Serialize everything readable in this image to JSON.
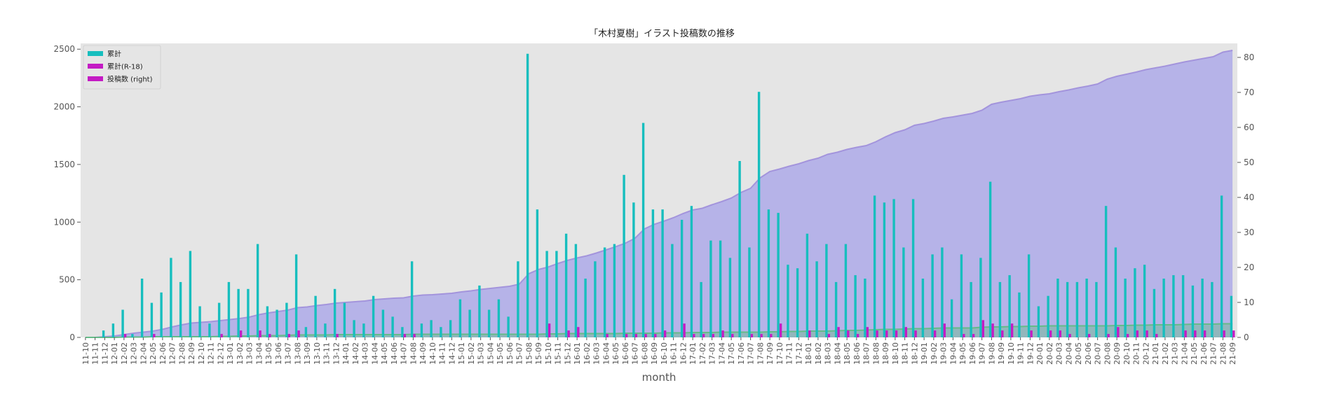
{
  "chart_data": {
    "type": "bar",
    "title": "「木村夏樹」イラスト投稿数の推移",
    "xlabel": "month",
    "ylabel": "",
    "ylim": [
      0,
      2550
    ],
    "y2lim": [
      0,
      84
    ],
    "yticks": [
      0,
      500,
      1000,
      1500,
      2000,
      2500
    ],
    "y2ticks": [
      0,
      10,
      20,
      30,
      40,
      50,
      60,
      70,
      80
    ],
    "grid": false,
    "legend_position": "top-left",
    "colors": {
      "total_bar": "#17bebe",
      "r18_bar": "#c41bc4",
      "posts_line": "#a394dc",
      "posts_area": "#b3b0e8",
      "r18_line": "#66bb88",
      "plot_bg": "#e5e5e5"
    },
    "categories": [
      "11-10",
      "11-11",
      "11-12",
      "12-01",
      "12-02",
      "12-03",
      "12-04",
      "12-05",
      "12-06",
      "12-07",
      "12-08",
      "12-09",
      "12-10",
      "12-11",
      "12-12",
      "13-01",
      "13-02",
      "13-03",
      "13-04",
      "13-05",
      "13-06",
      "13-07",
      "13-08",
      "13-09",
      "13-10",
      "13-11",
      "13-12",
      "14-01",
      "14-02",
      "14-03",
      "14-04",
      "14-05",
      "14-06",
      "14-07",
      "14-08",
      "14-09",
      "14-10",
      "14-11",
      "14-12",
      "15-01",
      "15-02",
      "15-03",
      "15-04",
      "15-05",
      "15-06",
      "15-07",
      "15-08",
      "15-09",
      "15-10",
      "15-11",
      "15-12",
      "16-01",
      "16-02",
      "16-03",
      "16-04",
      "16-05",
      "16-06",
      "16-07",
      "16-08",
      "16-09",
      "16-10",
      "16-11",
      "16-12",
      "17-01",
      "17-02",
      "17-03",
      "17-04",
      "17-05",
      "17-06",
      "17-07",
      "17-08",
      "17-09",
      "17-10",
      "17-11",
      "17-12",
      "18-01",
      "18-02",
      "18-03",
      "18-04",
      "18-05",
      "18-06",
      "18-07",
      "18-08",
      "18-09",
      "18-10",
      "18-11",
      "18-12",
      "19-01",
      "19-02",
      "19-03",
      "19-04",
      "19-05",
      "19-06",
      "19-07",
      "19-08",
      "19-09",
      "19-10",
      "19-11",
      "19-12",
      "20-01",
      "20-02",
      "20-03",
      "20-04",
      "20-05",
      "20-06",
      "20-07",
      "20-08",
      "20-09",
      "20-10",
      "20-11",
      "20-12",
      "21-01",
      "21-02",
      "21-03",
      "21-04",
      "21-05",
      "21-06",
      "21-07",
      "21-08",
      "21-09"
    ],
    "series": [
      {
        "name": "累計",
        "axis": "left",
        "kind": "bar",
        "values": [
          0,
          0,
          60,
          120,
          240,
          30,
          510,
          300,
          390,
          690,
          480,
          750,
          270,
          120,
          300,
          480,
          420,
          420,
          810,
          270,
          240,
          300,
          720,
          90,
          360,
          120,
          420,
          300,
          150,
          120,
          360,
          240,
          180,
          90,
          660,
          120,
          150,
          90,
          150,
          330,
          240,
          450,
          240,
          330,
          180,
          660,
          2460,
          1110,
          750,
          750,
          900,
          810,
          510,
          660,
          780,
          810,
          1410,
          1170,
          1860,
          1110,
          1110,
          810,
          1020,
          1140,
          480,
          840,
          840,
          690,
          1530,
          780,
          2130,
          1110,
          1080,
          630,
          600,
          900,
          660,
          810,
          480,
          810,
          540,
          510,
          1230,
          1170,
          1200,
          780,
          1200,
          510,
          720,
          780,
          330,
          720,
          480,
          690,
          1350,
          480,
          540,
          390,
          720,
          270,
          360,
          510,
          480,
          480,
          510,
          480,
          1140,
          780,
          510,
          600,
          630,
          420,
          510,
          540,
          540,
          450,
          510,
          480,
          1230,
          360
        ]
      },
      {
        "name": "累計(R-18)",
        "axis": "left",
        "kind": "bar",
        "values": [
          0,
          0,
          0,
          0,
          30,
          0,
          0,
          30,
          0,
          0,
          0,
          0,
          0,
          0,
          30,
          0,
          60,
          0,
          60,
          30,
          0,
          30,
          60,
          0,
          0,
          0,
          30,
          0,
          0,
          0,
          0,
          0,
          0,
          30,
          30,
          0,
          0,
          0,
          0,
          0,
          0,
          0,
          0,
          0,
          0,
          0,
          0,
          0,
          120,
          0,
          60,
          90,
          0,
          0,
          30,
          0,
          30,
          30,
          30,
          30,
          60,
          0,
          120,
          30,
          30,
          30,
          60,
          30,
          0,
          30,
          30,
          30,
          120,
          0,
          0,
          60,
          0,
          30,
          90,
          60,
          30,
          90,
          60,
          60,
          60,
          90,
          60,
          0,
          60,
          120,
          0,
          30,
          30,
          150,
          120,
          60,
          120,
          0,
          60,
          0,
          60,
          60,
          30,
          0,
          30,
          0,
          30,
          90,
          30,
          60,
          60,
          30,
          0,
          0,
          60,
          60,
          60,
          0,
          60,
          60
        ]
      },
      {
        "name": "投稿数 (right)",
        "axis": "right",
        "kind": "area",
        "values": [
          0,
          0,
          0.2,
          0.4,
          0.8,
          1.2,
          1.5,
          1.8,
          2.3,
          3,
          3.6,
          4.1,
          4.3,
          4.5,
          4.8,
          5.1,
          5.4,
          5.8,
          6.5,
          7,
          7.4,
          7.8,
          8.5,
          8.7,
          9.1,
          9.4,
          9.8,
          10,
          10.2,
          10.4,
          10.8,
          11,
          11.2,
          11.3,
          11.8,
          12.1,
          12.2,
          12.4,
          12.6,
          13,
          13.3,
          13.7,
          14,
          14.3,
          14.6,
          15.2,
          18.2,
          19.4,
          20.1,
          21.1,
          22,
          22.7,
          23.3,
          24.1,
          25,
          25.9,
          26.9,
          28.3,
          31,
          32.3,
          33.2,
          34.2,
          35.4,
          36.4,
          36.9,
          37.9,
          38.8,
          39.8,
          41.4,
          42.6,
          45.6,
          47.4,
          48.1,
          48.9,
          49.6,
          50.5,
          51.2,
          52.3,
          52.9,
          53.7,
          54.3,
          54.8,
          55.9,
          57.3,
          58.5,
          59.3,
          60.6,
          61.1,
          61.8,
          62.6,
          63,
          63.5,
          64,
          64.9,
          66.6,
          67.2,
          67.7,
          68.2,
          68.9,
          69.3,
          69.6,
          70.2,
          70.7,
          71.3,
          71.8,
          72.4,
          73.8,
          74.6,
          75.2,
          75.8,
          76.5,
          77,
          77.5,
          78.1,
          78.7,
          79.2,
          79.7,
          80.2,
          81.5,
          82
        ]
      },
      {
        "axis": "right",
        "kind": "area",
        "values": [
          0,
          0,
          0,
          0,
          0.1,
          0.1,
          0.1,
          0.2,
          0.2,
          0.2,
          0.2,
          0.2,
          0.2,
          0.2,
          0.3,
          0.3,
          0.4,
          0.4,
          0.5,
          0.5,
          0.5,
          0.6,
          0.7,
          0.7,
          0.7,
          0.7,
          0.8,
          0.8,
          0.8,
          0.8,
          0.8,
          0.8,
          0.8,
          0.8,
          0.9,
          0.9,
          0.9,
          0.9,
          0.9,
          0.9,
          0.9,
          0.9,
          0.9,
          0.9,
          0.9,
          0.9,
          0.9,
          0.9,
          1,
          1,
          1.1,
          1.1,
          1.1,
          1.1,
          1.1,
          1.1,
          1.2,
          1.2,
          1.2,
          1.2,
          1.3,
          1.3,
          1.3,
          1.4,
          1.4,
          1.4,
          1.5,
          1.5,
          1.5,
          1.5,
          1.5,
          1.6,
          1.6,
          1.7,
          1.7,
          1.8,
          1.8,
          1.8,
          1.9,
          2,
          2,
          2.1,
          2.2,
          2.3,
          2.3,
          2.4,
          2.5,
          2.5,
          2.6,
          2.7,
          2.7,
          2.7,
          2.7,
          2.9,
          3,
          3,
          3.1,
          3.1,
          3.2,
          3.2,
          3.3,
          3.3,
          3.3,
          3.3,
          3.3,
          3.3,
          3.3,
          3.4,
          3.4,
          3.5,
          3.5,
          3.6,
          3.6,
          3.6,
          3.7,
          3.8,
          3.8,
          3.8,
          3.9,
          3.9
        ]
      }
    ]
  }
}
